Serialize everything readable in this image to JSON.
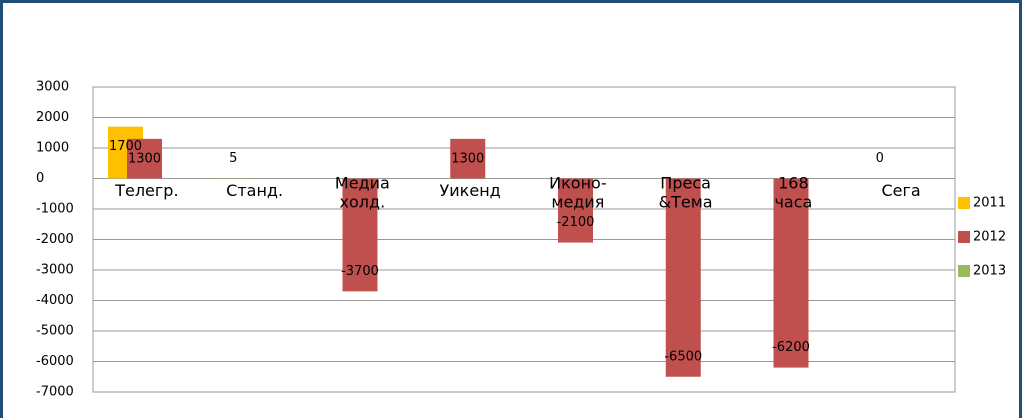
{
  "chart_data": {
    "type": "bar",
    "categories": [
      "Телегр.",
      "Станд.",
      "Медиа холд.",
      "Уикенд",
      "Иконо-медия",
      "Преса &Тема",
      "168 часа",
      "Сега"
    ],
    "series": [
      {
        "name": "2011",
        "color": "#FFC000",
        "values": [
          1700,
          5,
          null,
          null,
          null,
          null,
          null,
          0
        ]
      },
      {
        "name": "2012",
        "color": "#C0504D",
        "values": [
          1300,
          null,
          -3700,
          1300,
          -2100,
          -6500,
          -6200,
          null
        ]
      },
      {
        "name": "2013",
        "color": "#9BBB59",
        "values": [
          null,
          null,
          null,
          null,
          null,
          null,
          null,
          null
        ]
      }
    ],
    "ylim": [
      -7000,
      3000
    ],
    "yticks": [
      3000,
      2000,
      1000,
      0,
      -1000,
      -2000,
      -3000,
      -4000,
      -5000,
      -6000,
      -7000
    ],
    "grid": true,
    "legend": "right"
  }
}
